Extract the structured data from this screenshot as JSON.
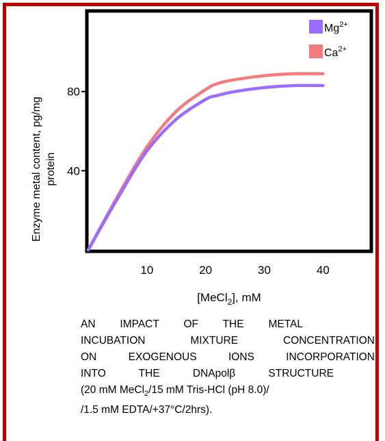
{
  "chart_data": {
    "type": "line",
    "xlabel": "[MeCl2], mM",
    "xlabel_main": "[MeCl",
    "xlabel_sub": "2",
    "xlabel_tail": "], mM",
    "ylabel": "Enzyme metal content, pg/mg protein",
    "xlim": [
      0,
      48
    ],
    "ylim": [
      0,
      120
    ],
    "x_ticks": [
      10,
      20,
      30,
      40
    ],
    "y_ticks": [
      40,
      80
    ],
    "grid": false,
    "legend_position": "top-right",
    "series": [
      {
        "name": "Mg2+",
        "name_main": "Mg",
        "name_sup": "2+",
        "color": "#9b6cff",
        "x": [
          0,
          5,
          10,
          15,
          20,
          22,
          25,
          30,
          35,
          40
        ],
        "y": [
          0,
          26,
          50,
          66,
          76,
          78,
          80,
          82,
          83,
          83
        ]
      },
      {
        "name": "Ca2+",
        "name_main": "Ca",
        "name_sup": "2+",
        "color": "#f47c7c",
        "x": [
          0,
          5,
          10,
          15,
          20,
          22,
          25,
          30,
          35,
          40
        ],
        "y": [
          0,
          27,
          52,
          70,
          81,
          84,
          86,
          88,
          89,
          89
        ]
      }
    ]
  },
  "caption": {
    "lines": [
      "AN IMPACT OF THE METAL",
      "INCUBATION MIXTURE CONCENTRATION",
      "ON EXOGENOUS IONS INCORPORATION",
      "INTO THE DNApolβ STRUCTURE"
    ],
    "line5_a": "(20 mM MeCl",
    "line5_sub": "2",
    "line5_b": "/15 mM Tris-HCl (pH 8.0)/",
    "line6": "/1.5 mM EDTA/+37°C/2hrs)."
  },
  "colors": {
    "frame": "#c00000",
    "axes": "#000000"
  }
}
